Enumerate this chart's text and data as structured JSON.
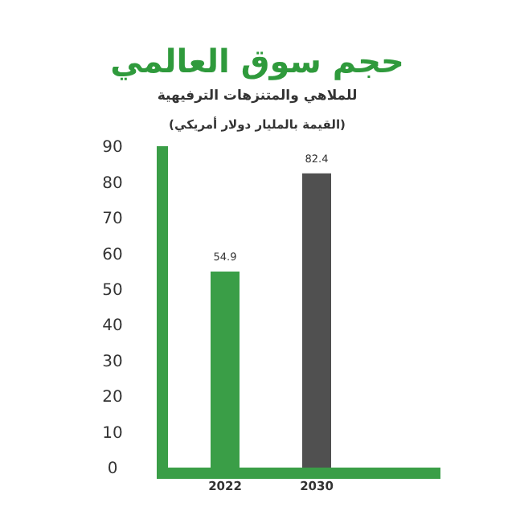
{
  "chart_data": {
    "type": "bar",
    "title": "حجم سوق العالمي",
    "subtitle": "للملاهي والمتنزهات الترفيهية",
    "annotations": [
      "(القيمة بالمليار دولار أمريكي)"
    ],
    "categories": [
      "2022",
      "2030"
    ],
    "values": [
      54.9,
      82.4
    ],
    "colors": [
      "#3a9e47",
      "#505050"
    ],
    "ylim": [
      0,
      90
    ],
    "yticks": [
      0,
      10,
      20,
      30,
      40,
      50,
      60,
      70,
      80,
      90
    ],
    "data_labels": true
  }
}
